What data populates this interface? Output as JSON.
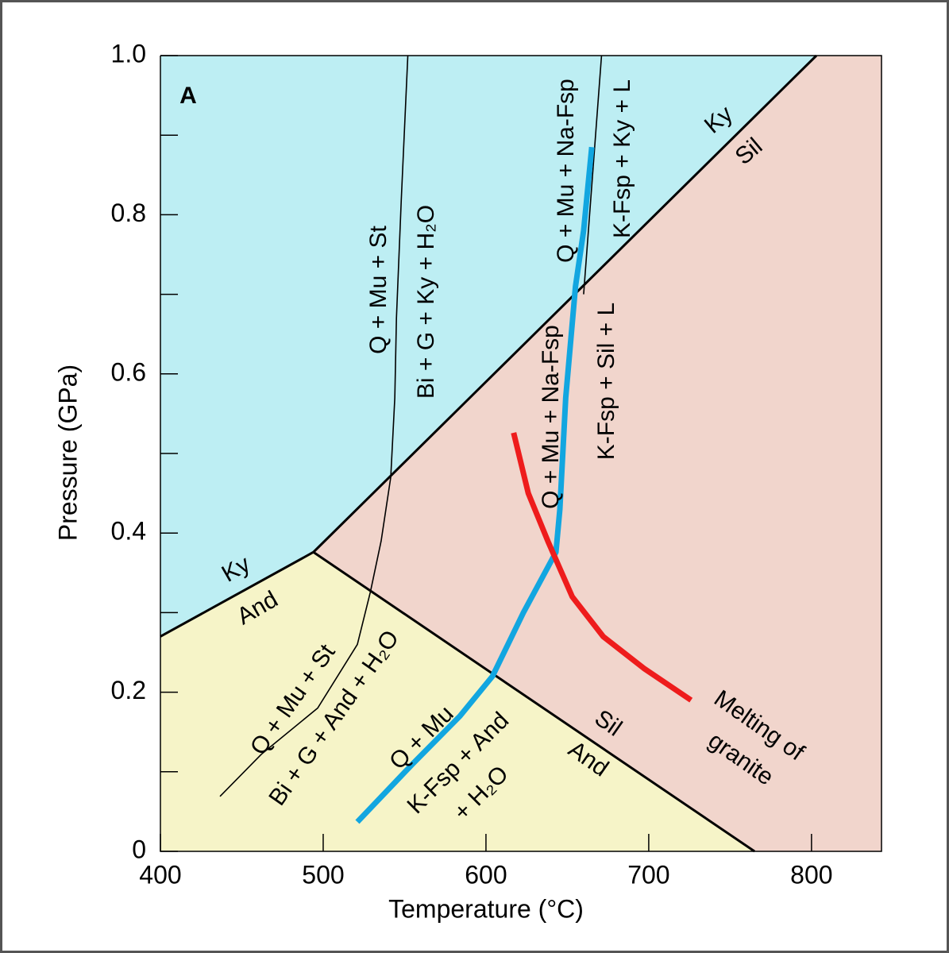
{
  "chart_data": {
    "type": "line",
    "panel_label": "A",
    "x_label": "Temperature (°C)",
    "y_label": "Pressure (GPa)",
    "xlim": [
      400,
      843
    ],
    "ylim": [
      0,
      1
    ],
    "xticks": [
      400,
      500,
      600,
      700,
      800
    ],
    "yticks": [
      0,
      0.2,
      0.4,
      0.6,
      0.8,
      {
        "value": 1,
        "label": "1.0"
      }
    ],
    "yminorticks": [
      0.1,
      0.3,
      0.5,
      0.7,
      0.9
    ],
    "series": [
      {
        "color": "#000000",
        "line_width": 3,
        "x": [
          400,
          494
        ],
        "y": [
          0.27,
          0.376
        ]
      },
      {
        "color": "#000000",
        "line_width": 3,
        "x": [
          494,
          803
        ],
        "y": [
          0.376,
          1.0
        ]
      },
      {
        "color": "#000000",
        "line_width": 3,
        "x": [
          494,
          765
        ],
        "y": [
          0.376,
          0
        ]
      },
      {
        "color": "#000000",
        "line_width": 1.6,
        "x": [
          436.6,
          462,
          496.6,
          521,
          529,
          535.6,
          541.5,
          544,
          545,
          548,
          552
        ],
        "y": [
          0.069,
          0.122,
          0.18,
          0.26,
          0.326,
          0.39,
          0.47,
          0.57,
          0.67,
          0.82,
          1.0
        ]
      },
      {
        "color": "#000000",
        "line_width": 1.6,
        "x": [
          660,
          671
        ],
        "y": [
          0.7,
          1.0
        ]
      },
      {
        "color": "#12a6e0",
        "line_width": 7,
        "x": [
          521,
          555,
          584,
          604,
          623,
          643,
          645.4,
          649,
          655,
          660,
          665
        ],
        "y": [
          0.037,
          0.11,
          0.17,
          0.22,
          0.3,
          0.376,
          0.43,
          0.57,
          0.71,
          0.78,
          0.885
        ]
      },
      {
        "color": "#ee1c1c",
        "line_width": 7,
        "x": [
          617,
          626,
          638,
          653,
          672,
          697,
          726
        ],
        "y": [
          0.526,
          0.45,
          0.39,
          0.32,
          0.27,
          0.23,
          0.19
        ]
      }
    ],
    "annotations": [
      "Q + Mu + St",
      "Bi + G + Ky + H₂O",
      "Q + Mu + Na-Fsp",
      "K-Fsp + Ky + L",
      "Q + Mu + Na-Fsp",
      "K-Fsp + Sil + L",
      "Ky",
      "Sil",
      "Ky",
      "And",
      "Q + Mu + St",
      "Bi + G + And + H₂O",
      "Q + Mu",
      "K-Fsp + And",
      "+ H₂O",
      "Sil",
      "And",
      "Melting of",
      "granite"
    ]
  }
}
